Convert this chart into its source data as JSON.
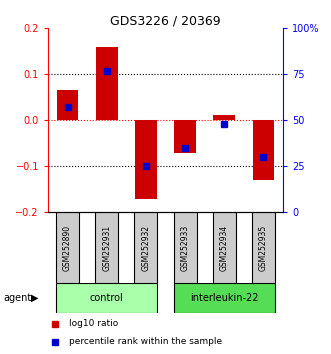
{
  "title": "GDS3226 / 20369",
  "samples": [
    "GSM252890",
    "GSM252931",
    "GSM252932",
    "GSM252933",
    "GSM252934",
    "GSM252935"
  ],
  "log10_ratio": [
    0.065,
    0.16,
    -0.17,
    -0.07,
    0.012,
    -0.13
  ],
  "percentile_rank": [
    57,
    77,
    25,
    35,
    48,
    30
  ],
  "groups": [
    {
      "label": "control",
      "indices": [
        0,
        1,
        2
      ],
      "color": "#aaffaa"
    },
    {
      "label": "interleukin-22",
      "indices": [
        3,
        4,
        5
      ],
      "color": "#55dd55"
    }
  ],
  "ylim_left": [
    -0.2,
    0.2
  ],
  "ylim_right": [
    0,
    100
  ],
  "yticks_left": [
    -0.2,
    -0.1,
    0.0,
    0.1,
    0.2
  ],
  "yticks_right": [
    0,
    25,
    50,
    75,
    100
  ],
  "ytick_labels_right": [
    "0",
    "25",
    "50",
    "75",
    "100%"
  ],
  "bar_color": "#cc0000",
  "dot_color": "#0000cc",
  "agent_label": "agent",
  "legend_bar_label": "log10 ratio",
  "legend_dot_label": "percentile rank within the sample",
  "bar_width": 0.55,
  "sample_box_color": "#cccccc"
}
